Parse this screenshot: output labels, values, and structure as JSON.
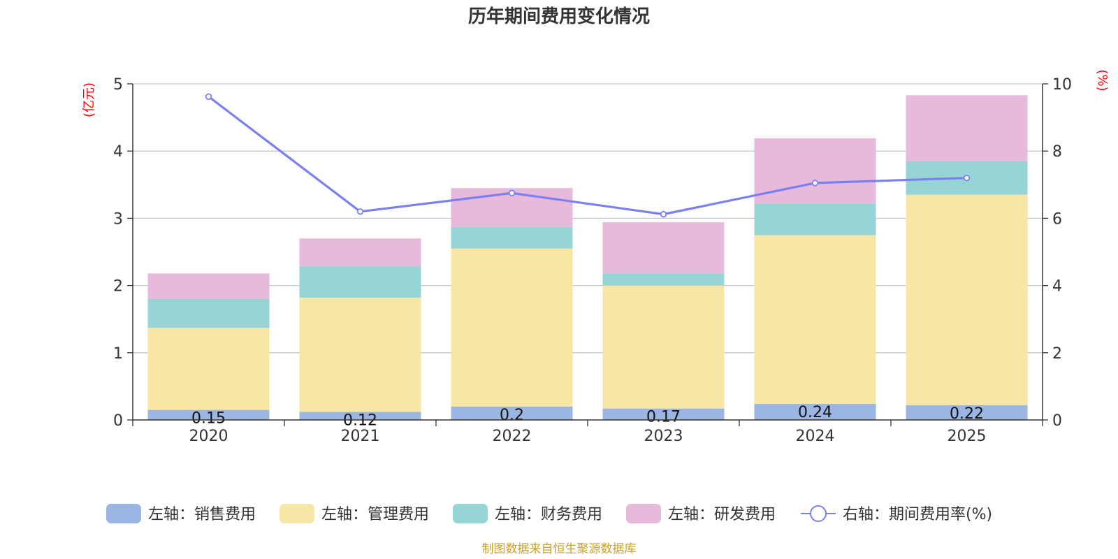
{
  "chart_data": {
    "type": "bar",
    "title": "历年期间费用变化情况",
    "categories": [
      "2020",
      "2021",
      "2022",
      "2023",
      "2024",
      "2025"
    ],
    "stacked": true,
    "left_axis": {
      "unit": "(亿元)",
      "ylim": [
        0,
        5
      ],
      "ticks": [
        "0",
        "1",
        "2",
        "3",
        "4",
        "5"
      ]
    },
    "right_axis": {
      "unit": "(%)",
      "ylim": [
        0,
        10
      ],
      "ticks": [
        "0",
        "2",
        "4",
        "6",
        "8",
        "10"
      ]
    },
    "series": [
      {
        "name": "左轴：销售费用",
        "axis": "left",
        "type": "bar",
        "color": "#9bb6e3",
        "values": [
          0.15,
          0.12,
          0.2,
          0.17,
          0.24,
          0.22
        ],
        "labels": [
          "0.15",
          "0.12",
          "0.2",
          "0.17",
          "0.24",
          "0.22"
        ]
      },
      {
        "name": "左轴：管理费用",
        "axis": "left",
        "type": "bar",
        "color": "#f8e6a6",
        "values": [
          1.22,
          1.7,
          2.35,
          1.83,
          2.51,
          3.13
        ]
      },
      {
        "name": "左轴：财务费用",
        "axis": "left",
        "type": "bar",
        "color": "#97d4d5",
        "values": [
          0.43,
          0.47,
          0.32,
          0.18,
          0.47,
          0.5
        ]
      },
      {
        "name": "左轴：研发费用",
        "axis": "left",
        "type": "bar",
        "color": "#e7b9da",
        "values": [
          0.38,
          0.41,
          0.58,
          0.76,
          0.97,
          0.98
        ]
      },
      {
        "name": "右轴：期间费用率(%)",
        "axis": "right",
        "type": "line",
        "color": "#7b7ff0",
        "values": [
          9.62,
          6.2,
          6.75,
          6.12,
          7.05,
          7.2
        ]
      }
    ],
    "legend_position": "bottom",
    "grid": true
  },
  "source_note": "制图数据来自恒生聚源数据库"
}
